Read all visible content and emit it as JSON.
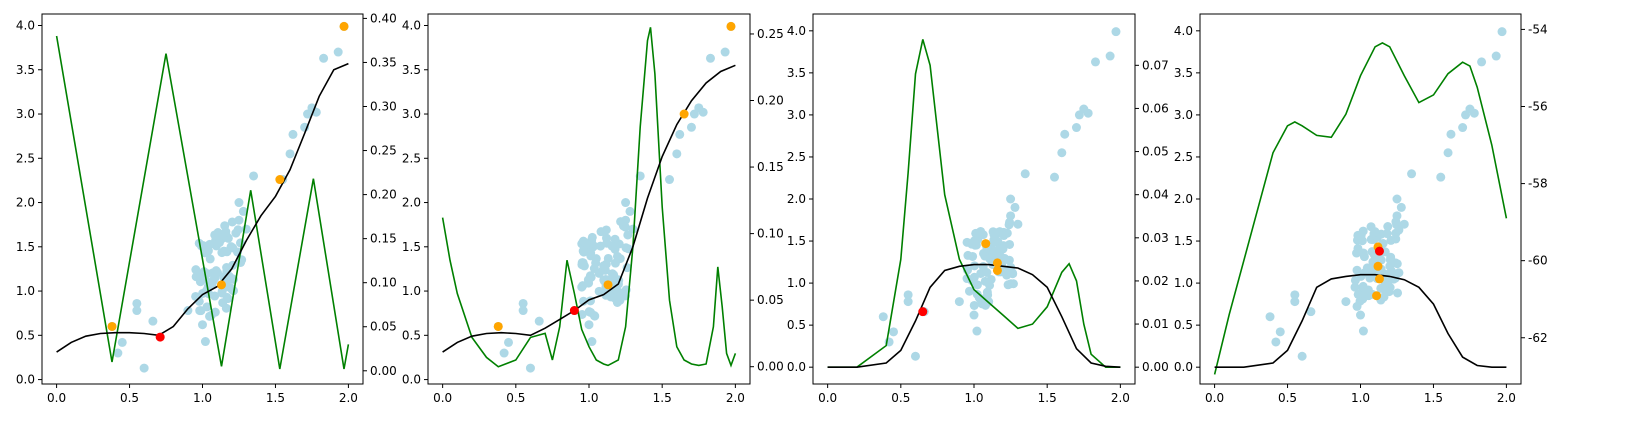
{
  "figure": {
    "panels": 4
  },
  "colors": {
    "scatter": "#add8e6",
    "highlight": "#ffa500",
    "selected": "#ff0000",
    "mean": "#000000",
    "acquisition": "#008000",
    "axes": "#000000"
  },
  "chart_data": [
    {
      "type": "scatter",
      "title": "",
      "xlabel": "",
      "ylabel": "",
      "xlim": [
        -0.1,
        2.1
      ],
      "ylim": [
        -0.05,
        4.13
      ],
      "xticks": [
        "0.0",
        "0.5",
        "1.0",
        "1.5",
        "2.0"
      ],
      "yticks": [
        "0.0",
        "0.5",
        "1.0",
        "1.5",
        "2.0",
        "2.5",
        "3.0",
        "3.5",
        "4.0"
      ],
      "right_ylim": [
        -0.015,
        0.405
      ],
      "right_yticks": [
        "0.00",
        "0.05",
        "0.10",
        "0.15",
        "0.20",
        "0.25",
        "0.30",
        "0.35",
        "0.40"
      ],
      "highlight_points": [
        [
          0.38,
          0.6
        ],
        [
          1.13,
          1.07
        ],
        [
          1.53,
          2.26
        ],
        [
          1.97,
          3.99
        ]
      ],
      "selected_points": [
        [
          0.71,
          0.48
        ]
      ],
      "mean_curve": {
        "x": [
          0,
          0.1,
          0.2,
          0.3,
          0.4,
          0.5,
          0.6,
          0.7,
          0.8,
          0.9,
          1.0,
          1.1,
          1.2,
          1.3,
          1.4,
          1.5,
          1.6,
          1.7,
          1.8,
          1.9,
          2.0
        ],
        "y": [
          0.31,
          0.42,
          0.49,
          0.52,
          0.53,
          0.53,
          0.52,
          0.5,
          0.6,
          0.8,
          0.96,
          1.05,
          1.25,
          1.57,
          1.85,
          2.07,
          2.37,
          2.78,
          3.2,
          3.5,
          3.57
        ]
      },
      "acquisition_curve": {
        "x": [
          0,
          0.38,
          0.75,
          1.13,
          1.33,
          1.53,
          1.76,
          1.97,
          2.0
        ],
        "y": [
          0.38,
          0.01,
          0.36,
          0.005,
          0.205,
          0.002,
          0.218,
          0.002,
          0.03
        ]
      }
    },
    {
      "type": "scatter",
      "title": "",
      "xlabel": "",
      "ylabel": "",
      "xlim": [
        -0.1,
        2.1
      ],
      "ylim": [
        -0.05,
        4.13
      ],
      "xticks": [
        "0.0",
        "0.5",
        "1.0",
        "1.5",
        "2.0"
      ],
      "yticks": [
        "0.0",
        "0.5",
        "1.0",
        "1.5",
        "2.0",
        "2.5",
        "3.0",
        "3.5",
        "4.0"
      ],
      "right_ylim": [
        -0.013,
        0.265
      ],
      "right_yticks": [
        "0.00",
        "0.05",
        "0.10",
        "0.15",
        "0.20",
        "0.25"
      ],
      "highlight_points": [
        [
          0.38,
          0.6
        ],
        [
          1.13,
          1.07
        ],
        [
          1.65,
          3.0
        ],
        [
          1.97,
          3.99
        ]
      ],
      "selected_points": [
        [
          0.9,
          0.78
        ]
      ],
      "mean_curve": {
        "x": [
          0,
          0.1,
          0.2,
          0.3,
          0.4,
          0.5,
          0.6,
          0.7,
          0.8,
          0.9,
          1.0,
          1.1,
          1.2,
          1.3,
          1.4,
          1.5,
          1.6,
          1.7,
          1.8,
          1.9,
          2.0
        ],
        "y": [
          0.31,
          0.42,
          0.49,
          0.52,
          0.53,
          0.52,
          0.5,
          0.58,
          0.68,
          0.78,
          0.9,
          0.96,
          1.08,
          1.5,
          2.05,
          2.52,
          2.88,
          3.15,
          3.35,
          3.48,
          3.55
        ]
      },
      "acquisition_curve": {
        "x": [
          0,
          0.05,
          0.1,
          0.2,
          0.3,
          0.38,
          0.5,
          0.6,
          0.7,
          0.75,
          0.8,
          0.85,
          0.9,
          0.95,
          1.0,
          1.05,
          1.1,
          1.13,
          1.2,
          1.25,
          1.3,
          1.35,
          1.4,
          1.42,
          1.45,
          1.5,
          1.55,
          1.6,
          1.65,
          1.7,
          1.75,
          1.8,
          1.85,
          1.88,
          1.91,
          1.94,
          1.97,
          2.0
        ],
        "y": [
          0.112,
          0.08,
          0.055,
          0.022,
          0.007,
          0.0,
          0.005,
          0.022,
          0.025,
          0.005,
          0.03,
          0.08,
          0.055,
          0.028,
          0.015,
          0.005,
          0.002,
          0.001,
          0.005,
          0.03,
          0.09,
          0.18,
          0.245,
          0.255,
          0.22,
          0.12,
          0.05,
          0.015,
          0.005,
          0.002,
          0.001,
          0.002,
          0.03,
          0.075,
          0.045,
          0.01,
          0.001,
          0.01
        ]
      }
    },
    {
      "type": "scatter",
      "title": "",
      "xlabel": "",
      "ylabel": "",
      "xlim": [
        -0.1,
        2.1
      ],
      "ylim": [
        -0.2,
        4.2
      ],
      "xticks": [
        "0.0",
        "0.5",
        "1.0",
        "1.5",
        "2.0"
      ],
      "yticks": [
        "0.0",
        "0.5",
        "1.0",
        "1.5",
        "2.0",
        "2.5",
        "3.0",
        "3.5",
        "4.0"
      ],
      "right_ylim": [
        -0.0039,
        0.0819
      ],
      "right_yticks": [
        "0.00",
        "0.01",
        "0.02",
        "0.03",
        "0.04",
        "0.05",
        "0.06",
        "0.07"
      ],
      "highlight_points": [
        [
          1.08,
          1.47
        ],
        [
          1.16,
          1.24
        ],
        [
          1.16,
          1.15
        ]
      ],
      "selected_points": [
        [
          0.65,
          0.66
        ]
      ],
      "mean_curve": {
        "x": [
          0,
          0.2,
          0.4,
          0.5,
          0.6,
          0.7,
          0.8,
          0.9,
          1.0,
          1.1,
          1.2,
          1.3,
          1.4,
          1.5,
          1.6,
          1.7,
          1.8,
          1.9,
          2.0
        ],
        "y": [
          0.0,
          0.0,
          0.05,
          0.2,
          0.55,
          0.95,
          1.15,
          1.2,
          1.22,
          1.22,
          1.2,
          1.18,
          1.1,
          0.95,
          0.6,
          0.22,
          0.05,
          0.01,
          0.0
        ]
      },
      "acquisition_curve": {
        "x": [
          0,
          0.2,
          0.4,
          0.5,
          0.55,
          0.6,
          0.65,
          0.7,
          0.75,
          0.8,
          0.9,
          1.0,
          1.1,
          1.2,
          1.3,
          1.4,
          1.5,
          1.55,
          1.6,
          1.65,
          1.7,
          1.75,
          1.8,
          1.9,
          2.0
        ],
        "y": [
          0.0,
          0.0,
          0.005,
          0.025,
          0.045,
          0.068,
          0.076,
          0.07,
          0.055,
          0.04,
          0.025,
          0.018,
          0.015,
          0.012,
          0.009,
          0.01,
          0.014,
          0.018,
          0.022,
          0.024,
          0.02,
          0.01,
          0.003,
          0.0,
          0.0
        ]
      }
    },
    {
      "type": "scatter",
      "title": "",
      "xlabel": "",
      "ylabel": "",
      "xlim": [
        -0.1,
        2.1
      ],
      "ylim": [
        -0.2,
        4.2
      ],
      "xticks": [
        "0.0",
        "0.5",
        "1.0",
        "1.5",
        "2.0"
      ],
      "yticks": [
        "0.0",
        "0.5",
        "1.0",
        "1.5",
        "2.0",
        "2.5",
        "3.0",
        "3.5",
        "4.0"
      ],
      "right_ylim": [
        -63.2,
        -53.6
      ],
      "right_yticks": [
        "-62",
        "-60",
        "-58",
        "-56",
        "-54"
      ],
      "highlight_points": [
        [
          1.12,
          1.43
        ],
        [
          1.12,
          1.2
        ],
        [
          1.13,
          1.05
        ],
        [
          1.11,
          0.85
        ]
      ],
      "selected_points": [
        [
          1.13,
          1.38
        ]
      ],
      "mean_curve": {
        "x": [
          0,
          0.2,
          0.4,
          0.5,
          0.6,
          0.7,
          0.8,
          0.9,
          1.0,
          1.1,
          1.2,
          1.3,
          1.4,
          1.5,
          1.6,
          1.7,
          1.8,
          1.9,
          2.0
        ],
        "y": [
          0.0,
          0.0,
          0.05,
          0.2,
          0.55,
          0.95,
          1.05,
          1.08,
          1.1,
          1.1,
          1.08,
          1.04,
          0.95,
          0.75,
          0.4,
          0.12,
          0.02,
          0.0,
          0.0
        ]
      },
      "acquisition_curve": {
        "x": [
          0,
          0.1,
          0.2,
          0.3,
          0.4,
          0.5,
          0.55,
          0.6,
          0.7,
          0.8,
          0.9,
          1.0,
          1.1,
          1.15,
          1.2,
          1.3,
          1.4,
          1.5,
          1.6,
          1.7,
          1.75,
          1.8,
          1.9,
          2.0
        ],
        "y": [
          -62.95,
          -61.4,
          -60.0,
          -58.6,
          -57.2,
          -56.5,
          -56.4,
          -56.5,
          -56.75,
          -56.8,
          -56.2,
          -55.2,
          -54.45,
          -54.35,
          -54.45,
          -55.2,
          -55.9,
          -55.7,
          -55.15,
          -54.85,
          -54.95,
          -55.5,
          -57.0,
          -58.9
        ]
      }
    }
  ]
}
